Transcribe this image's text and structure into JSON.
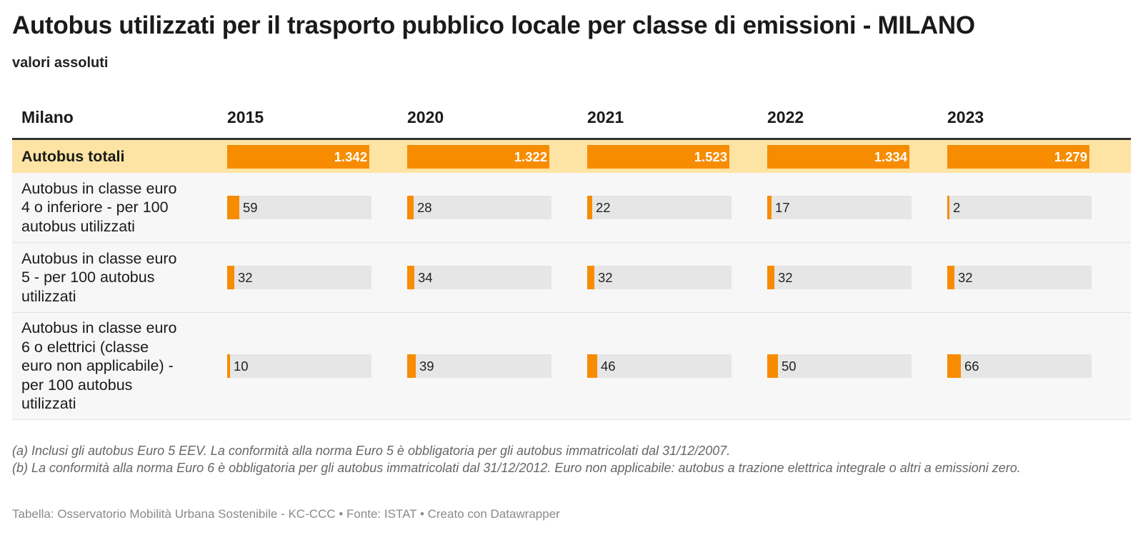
{
  "title": "Autobus utilizzati per il trasporto pubblico locale per classe di emissioni - MILANO",
  "subtitle": "valori assoluti",
  "colors": {
    "bar": "#f78c00",
    "track": "#e6e6e6",
    "highlight_row": "#fde4a4",
    "row_bg": "#f7f7f7"
  },
  "table": {
    "header": {
      "label": "Milano",
      "years": [
        "2015",
        "2020",
        "2021",
        "2022",
        "2023"
      ]
    }
  },
  "chart_data": {
    "type": "table",
    "title": "Autobus utilizzati per il trasporto pubblico locale per classe di emissioni - MILANO",
    "subtitle": "valori assoluti",
    "columns": [
      "2015",
      "2020",
      "2021",
      "2022",
      "2023"
    ],
    "rows": [
      {
        "label": "Autobus totali",
        "highlight": true,
        "scale_max": 1523,
        "values": [
          1342,
          1322,
          1523,
          1334,
          1279
        ],
        "labels": [
          "1.342",
          "1.322",
          "1.523",
          "1.334",
          "1.279"
        ]
      },
      {
        "label": "Autobus in classe euro 4 o inferiore - per 100 autobus utilizzati",
        "highlight": false,
        "scale_max": 1523,
        "values": [
          59,
          28,
          22,
          17,
          2
        ],
        "labels": [
          "59",
          "28",
          "22",
          "17",
          "2"
        ]
      },
      {
        "label": "Autobus in classe euro 5 - per 100 autobus utilizzati",
        "highlight": false,
        "scale_max": 1523,
        "values": [
          32,
          34,
          32,
          32,
          32
        ],
        "labels": [
          "32",
          "34",
          "32",
          "32",
          "32"
        ]
      },
      {
        "label": "Autobus in classe euro 6 o elettrici (classe euro non applicabile) - per 100 autobus utilizzati",
        "highlight": false,
        "scale_max": 1523,
        "values": [
          10,
          39,
          46,
          50,
          66
        ],
        "labels": [
          "10",
          "39",
          "46",
          "50",
          "66"
        ]
      }
    ]
  },
  "notes": [
    "(a) Inclusi gli autobus Euro 5 EEV. La conformità alla norma Euro 5 è obbligatoria per gli autobus immatricolati dal 31/12/2007.",
    "(b) La conformità alla norma Euro 6 è obbligatoria per gli autobus immatricolati dal 31/12/2012. Euro non applicabile: autobus a trazione elettrica integrale o altri a emissioni zero."
  ],
  "footer": "Tabella: Osservatorio Mobilità Urbana Sostenibile - KC-CCC • Fonte: ISTAT • Creato con Datawrapper"
}
